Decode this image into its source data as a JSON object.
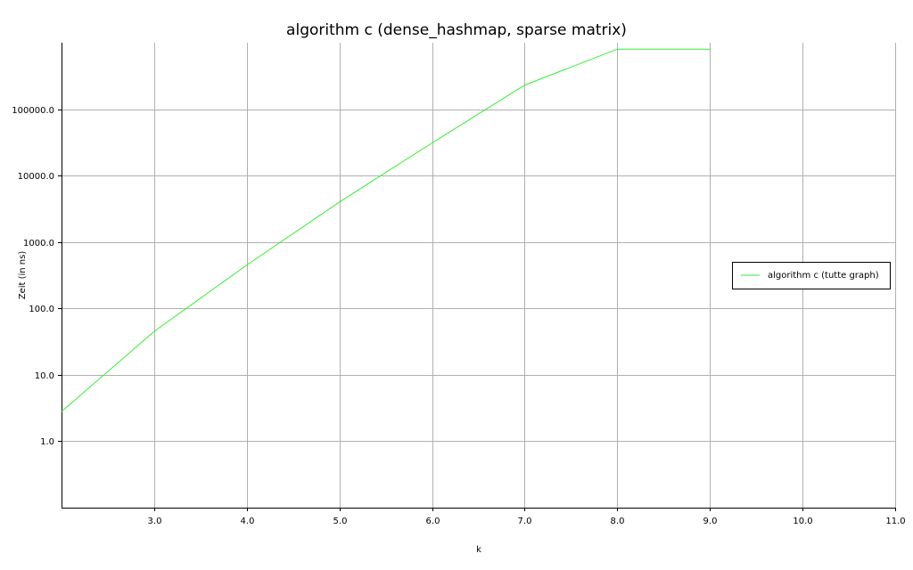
{
  "chart_data": {
    "type": "line",
    "title": "algorithm c (dense_hashmap, sparse matrix)",
    "xlabel": "k",
    "ylabel": "Zeit (in ns)",
    "xlim": [
      2.0,
      11.0
    ],
    "ylim": [
      0.1,
      1000000.0
    ],
    "yscale": "log",
    "grid": true,
    "legend_position": "right",
    "x_ticks": [
      3.0,
      4.0,
      5.0,
      6.0,
      7.0,
      8.0,
      9.0,
      10.0,
      11.0
    ],
    "x_tick_labels": [
      "3.0",
      "4.0",
      "5.0",
      "6.0",
      "7.0",
      "8.0",
      "9.0",
      "10.0",
      "11.0"
    ],
    "y_ticks": [
      1.0,
      10.0,
      100.0,
      1000.0,
      10000.0,
      100000.0
    ],
    "y_tick_labels": [
      "1.0",
      "10.0",
      "100.0",
      "1000.0",
      "10000.0",
      "100000.0"
    ],
    "series": [
      {
        "name": "algorithm c (tutte graph)",
        "color": "#33ee33",
        "x": [
          2.0,
          3.0,
          4.0,
          5.0,
          6.0,
          7.0,
          8.0,
          9.0
        ],
        "y": [
          2.8,
          45.0,
          450.0,
          4000.0,
          31000.0,
          230000.0,
          800000.0,
          800000.0
        ]
      }
    ]
  }
}
